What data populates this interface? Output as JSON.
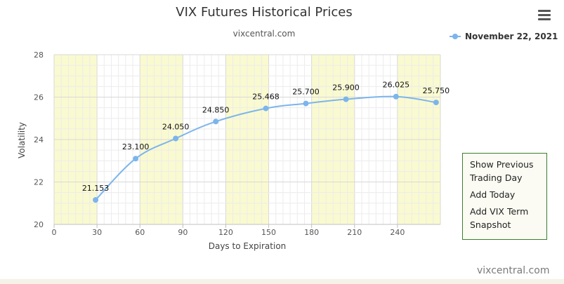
{
  "chart_data": {
    "type": "line",
    "title": "VIX Futures Historical Prices",
    "subtitle": "vixcentral.com",
    "xlabel": "Days to Expiration",
    "ylabel": "Volatility",
    "xlim": [
      0,
      270
    ],
    "ylim": [
      20,
      28
    ],
    "x_ticks": [
      "0",
      "30",
      "60",
      "90",
      "120",
      "150",
      "180",
      "210",
      "240"
    ],
    "y_ticks": [
      "20",
      "22",
      "24",
      "26",
      "28"
    ],
    "legend": {
      "position": "top-right"
    },
    "grid": true,
    "alternating_bands": {
      "color": "#fafad0",
      "ranges": [
        [
          0,
          30
        ],
        [
          60,
          90
        ],
        [
          120,
          150
        ],
        [
          180,
          210
        ],
        [
          240,
          270
        ]
      ]
    },
    "series": [
      {
        "name": "November 22, 2021",
        "color": "#7cb5ec",
        "x": [
          29,
          57,
          85,
          113,
          148,
          176,
          204,
          239,
          267
        ],
        "y": [
          21.153,
          23.1,
          24.05,
          24.85,
          25.468,
          25.7,
          25.9,
          26.025,
          25.75
        ],
        "labels": [
          "21.153",
          "23.100",
          "24.050",
          "24.850",
          "25.468",
          "25.700",
          "25.900",
          "26.025",
          "25.750"
        ]
      }
    ]
  },
  "menu": {
    "items": [
      "Show Previous Trading Day",
      "Add Today",
      "Add VIX Term Snapshot"
    ]
  },
  "credit": "vixcentral.com"
}
